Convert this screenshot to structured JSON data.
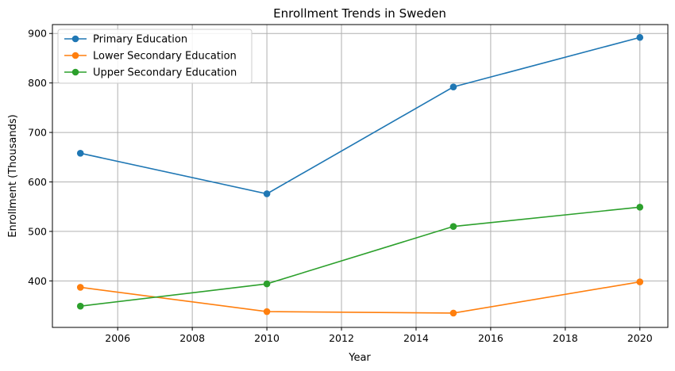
{
  "chart_data": {
    "type": "line",
    "title": "Enrollment Trends in Sweden",
    "xlabel": "Year",
    "ylabel": "Enrollment (Thousands)",
    "x": [
      2005,
      2010,
      2015,
      2020
    ],
    "xlim": [
      2004.25,
      2020.75
    ],
    "ylim": [
      306,
      918
    ],
    "xticks": [
      2006,
      2008,
      2010,
      2012,
      2014,
      2016,
      2018,
      2020
    ],
    "yticks": [
      400,
      500,
      600,
      700,
      800,
      900
    ],
    "grid": true,
    "legend_position": "top-left",
    "series": [
      {
        "name": "Primary Education",
        "color": "#1f77b4",
        "values": [
          658,
          576,
          792,
          892
        ]
      },
      {
        "name": "Lower Secondary Education",
        "color": "#ff7f0e",
        "values": [
          387,
          338,
          335,
          398
        ]
      },
      {
        "name": "Upper Secondary Education",
        "color": "#2ca02c",
        "values": [
          349,
          394,
          510,
          549
        ]
      }
    ]
  }
}
